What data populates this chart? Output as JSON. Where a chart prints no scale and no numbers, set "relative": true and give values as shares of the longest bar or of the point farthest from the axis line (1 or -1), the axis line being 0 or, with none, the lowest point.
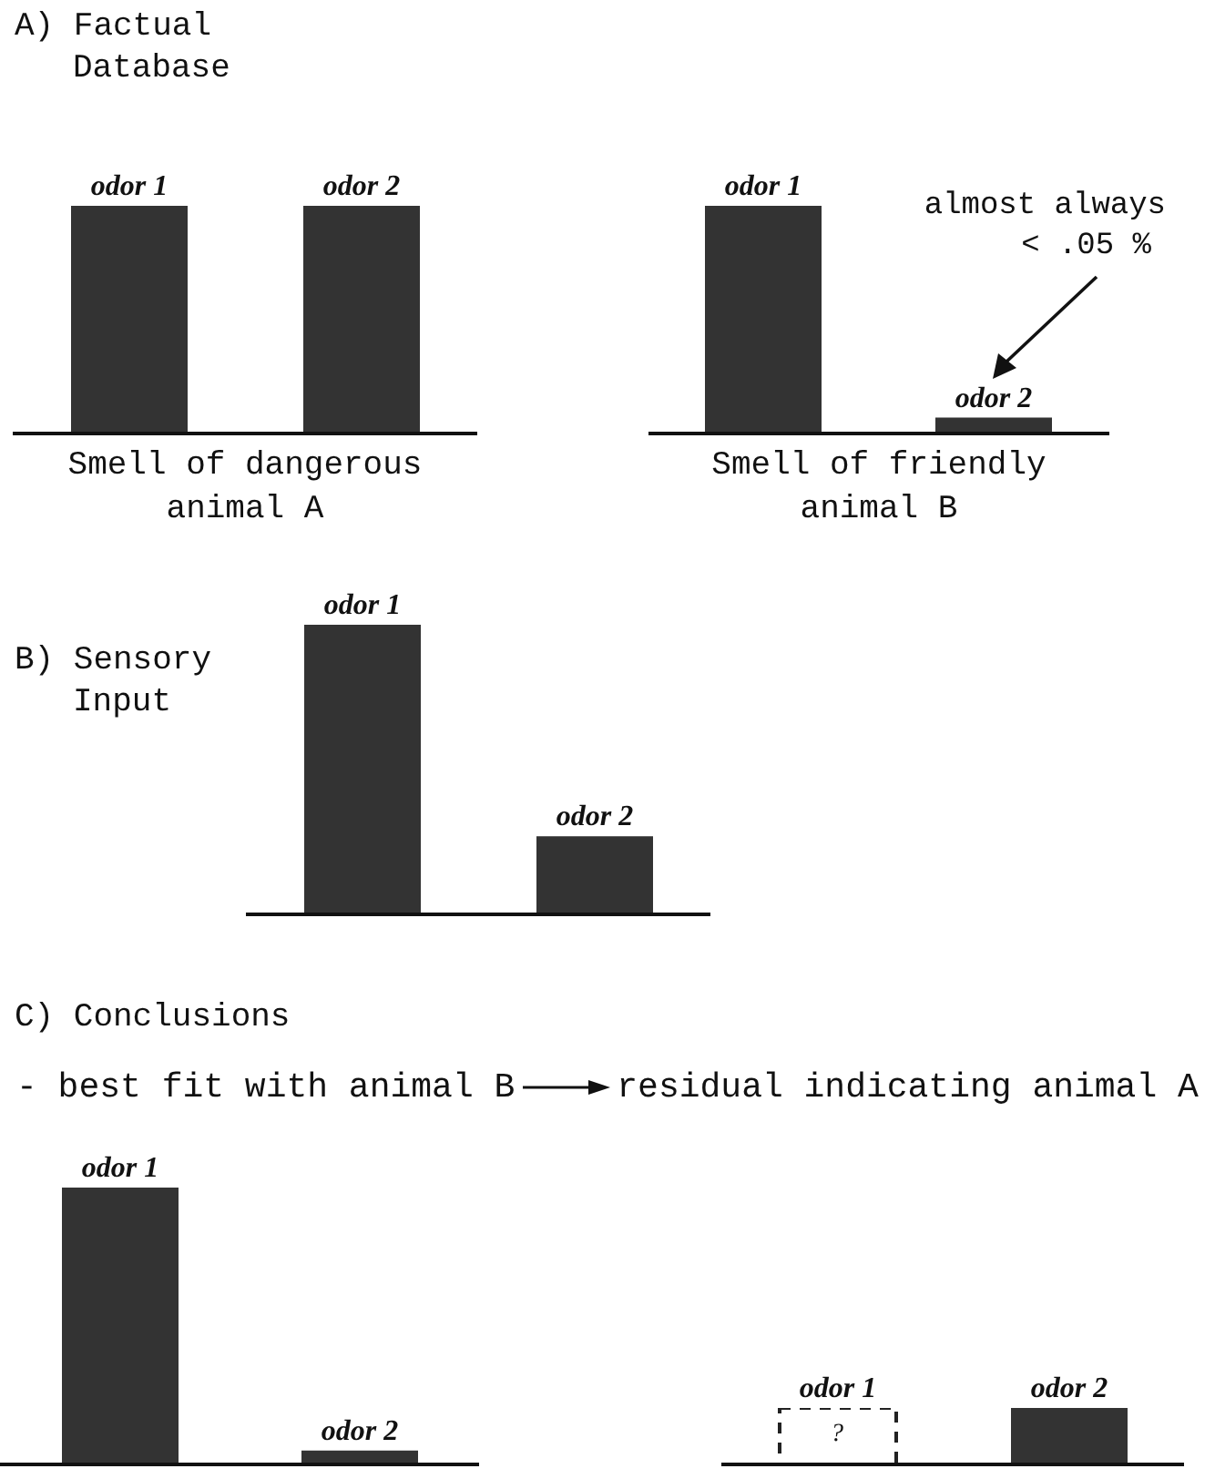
{
  "chart_data": [
    {
      "type": "bar",
      "title": "A) Factual Database",
      "xlabel": "Smell of dangerous animal A",
      "categories": [
        "odor 1",
        "odor 2"
      ],
      "values": [
        1,
        1
      ],
      "color": "#333333",
      "relative": true
    },
    {
      "type": "bar",
      "xlabel": "Smell of friendly animal B",
      "categories": [
        "odor 1",
        "odor 2"
      ],
      "values": [
        1,
        0.07
      ],
      "color": "#333333",
      "relative": true,
      "annotations": [
        "almost always < .05 %"
      ]
    },
    {
      "type": "bar",
      "title": "B) Sensory Input",
      "categories": [
        "odor 1",
        "odor 2"
      ],
      "values": [
        1,
        0.27
      ],
      "color": "#333333",
      "relative": true
    },
    {
      "type": "bar",
      "title": "C) Conclusions",
      "subtitle": "- best fit with animal B",
      "annotations": [
        "residual indicating animal A"
      ],
      "categories": [
        "odor 1",
        "odor 2"
      ],
      "values": [
        1,
        0.05
      ],
      "color": "#333333",
      "relative": true
    },
    {
      "type": "bar",
      "categories": [
        "odor 1",
        "odor 2"
      ],
      "stacked": true,
      "relative": true,
      "annotations": [
        "?"
      ],
      "series": [
        {
          "color": "#222222",
          "values": [
            1,
            null
          ],
          "line_style": "dashed"
        },
        {
          "color": "#333333",
          "values": [
            null,
            1
          ]
        }
      ]
    }
  ]
}
